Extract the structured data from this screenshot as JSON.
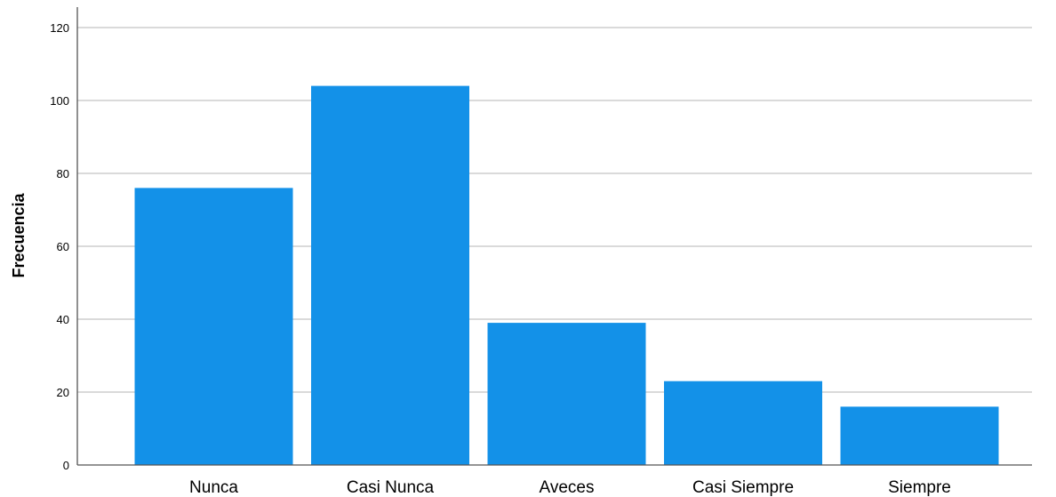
{
  "chart_data": {
    "type": "bar",
    "categories": [
      "Nunca",
      "Casi Nunca",
      "Aveces",
      "Casi Siempre",
      "Siempre"
    ],
    "values": [
      76,
      104,
      39,
      23,
      16
    ],
    "title": "",
    "xlabel": "",
    "ylabel": "Frecuencia",
    "ylim": [
      0,
      120
    ],
    "yticks": [
      "0",
      "20",
      "40",
      "60",
      "80",
      "100",
      "120"
    ],
    "grid": true,
    "legend": "none",
    "colors": {
      "bar": "#1391e8",
      "grid": "#c4c4c4",
      "axis": "#555555"
    }
  }
}
